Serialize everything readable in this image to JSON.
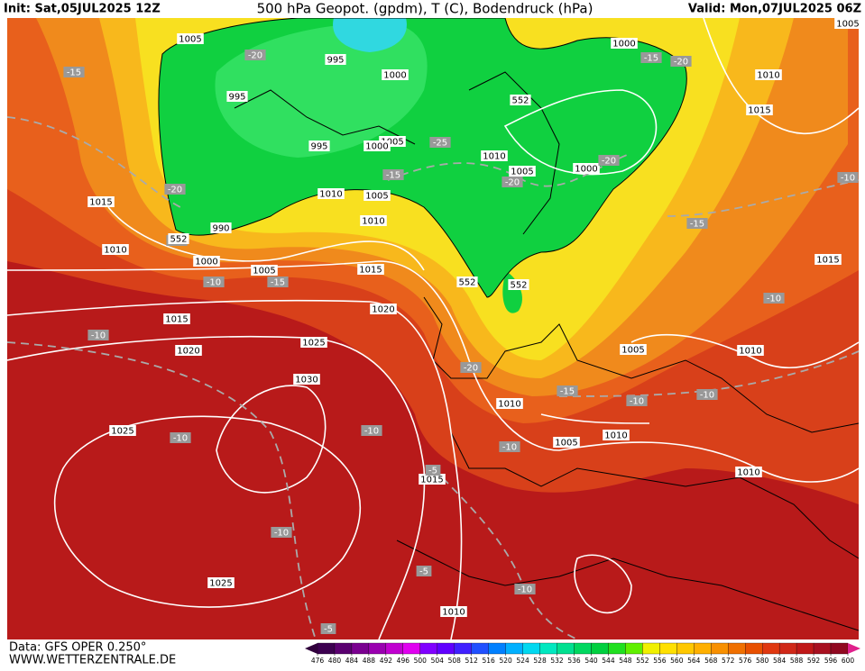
{
  "header": {
    "init": "Init: Sat,05JUL2025 12Z",
    "title": "500 hPa Geopot. (gpdm), T (C), Bodendruck (hPa)",
    "valid": "Valid: Mon,07JUL2025 06Z"
  },
  "footer": {
    "data": "Data: GFS OPER 0.250°",
    "site": "WWW.WETTERZENTRALE.DE"
  },
  "colorbar": {
    "ticks": [
      476,
      480,
      484,
      488,
      492,
      496,
      500,
      504,
      508,
      512,
      516,
      520,
      524,
      528,
      532,
      536,
      540,
      544,
      548,
      552,
      556,
      560,
      564,
      568,
      572,
      576,
      580,
      584,
      588,
      592,
      596,
      600
    ],
    "colors": [
      "#3c0050",
      "#5a0070",
      "#7a0090",
      "#9a00b0",
      "#c000d0",
      "#e000f0",
      "#8000ff",
      "#6000ff",
      "#4020ff",
      "#2050ff",
      "#0080ff",
      "#00b0ff",
      "#00d8f0",
      "#00e8c0",
      "#00e090",
      "#00d860",
      "#00d040",
      "#20e020",
      "#60f000",
      "#f0f000",
      "#ffe000",
      "#ffc800",
      "#ffb000",
      "#f89000",
      "#f07000",
      "#e85000",
      "#e03810",
      "#d02818",
      "#c01818",
      "#a81020",
      "#900820"
    ],
    "under_color": "#30003c",
    "over_color": "#e0208c"
  },
  "map": {
    "pressure_labels": [
      "1005",
      "995",
      "1000",
      "995",
      "1005",
      "1000",
      "995",
      "1010",
      "1005",
      "1010",
      "990",
      "1015",
      "1010",
      "1000",
      "1005",
      "1015",
      "1020",
      "1015",
      "1020",
      "1025",
      "1030",
      "1025",
      "1015",
      "1025",
      "1010",
      "1010",
      "1005",
      "1010",
      "1010",
      "1010",
      "1005",
      "1015",
      "1010",
      "1015",
      "1000",
      "1000",
      "1005",
      "1010",
      "1005"
    ],
    "temperature_labels": [
      "-15",
      "-20",
      "-25",
      "-15",
      "-20",
      "-15",
      "-10",
      "-15",
      "-10",
      "-10",
      "-10",
      "-10",
      "-5",
      "-10",
      "-5",
      "-20",
      "-10",
      "-15",
      "-10",
      "-10",
      "-10",
      "-15",
      "-10",
      "-20",
      "-20",
      "-15",
      "-20",
      "-5"
    ],
    "geopotential_labels": [
      "552",
      "552",
      "552",
      "552"
    ]
  }
}
